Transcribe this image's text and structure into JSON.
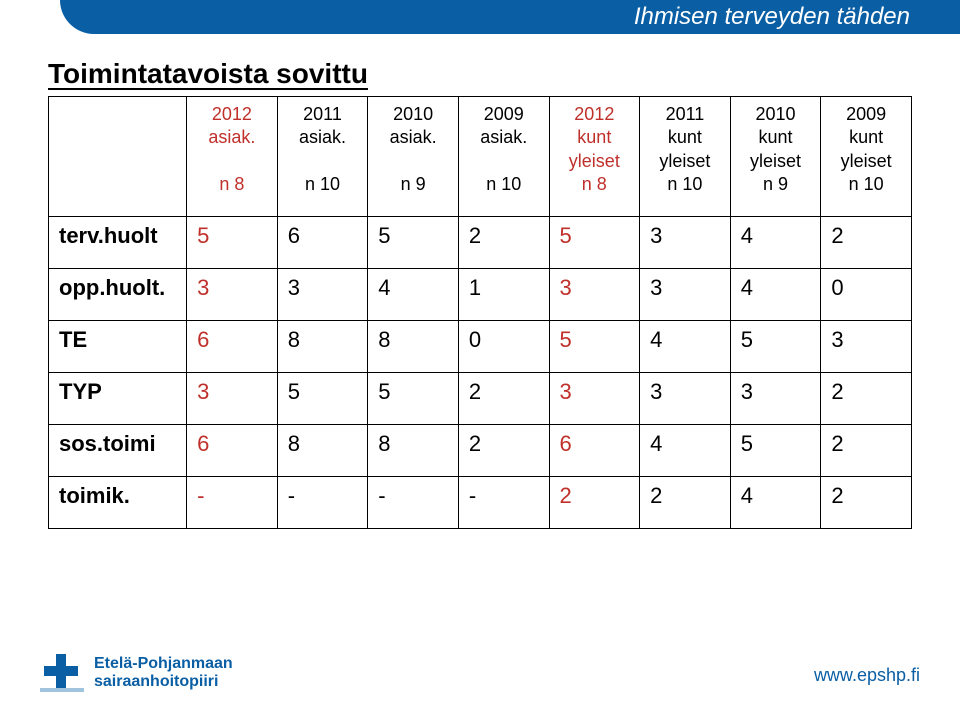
{
  "colors": {
    "accent": "#0a5fa4",
    "highlight_red": "#c0302b",
    "text": "#000000",
    "bg": "#ffffff"
  },
  "header": {
    "tagline": "Ihmisen terveyden tähden",
    "title": "Toimintatavoista  sovittu"
  },
  "table": {
    "row_label_width_pct": 16,
    "columns": [
      {
        "lines": [
          "2012",
          "asiak.",
          "",
          "n 8"
        ],
        "red": true
      },
      {
        "lines": [
          "2011",
          "asiak.",
          "",
          "n 10"
        ],
        "red": false
      },
      {
        "lines": [
          "2010",
          "asiak.",
          "",
          "n 9"
        ],
        "red": false
      },
      {
        "lines": [
          "2009",
          "asiak.",
          "",
          "n 10"
        ],
        "red": false
      },
      {
        "lines": [
          "2012",
          "kunt",
          "yleiset",
          "n 8"
        ],
        "red": true
      },
      {
        "lines": [
          "2011",
          "kunt",
          "yleiset",
          "n 10"
        ],
        "red": false
      },
      {
        "lines": [
          "2010",
          "kunt",
          "yleiset",
          "n 9"
        ],
        "red": false
      },
      {
        "lines": [
          "2009",
          "kunt",
          "yleiset",
          "n 10"
        ],
        "red": false
      }
    ],
    "rows": [
      {
        "label": "terv.huolt",
        "values": [
          "5",
          "6",
          "5",
          "2",
          "5",
          "3",
          "4",
          "2"
        ]
      },
      {
        "label": "opp.huolt.",
        "values": [
          "3",
          "3",
          "4",
          "1",
          "3",
          "3",
          "4",
          "0"
        ]
      },
      {
        "label": "TE",
        "values": [
          "6",
          "8",
          "8",
          "0",
          "5",
          "4",
          "5",
          "3"
        ]
      },
      {
        "label": "TYP",
        "values": [
          "3",
          "5",
          "5",
          "2",
          "3",
          "3",
          "3",
          "2"
        ]
      },
      {
        "label": "sos.toimi",
        "values": [
          "6",
          "8",
          "8",
          "2",
          "6",
          "4",
          "5",
          "2"
        ]
      },
      {
        "label": "toimik.",
        "values": [
          "-",
          "-",
          "-",
          "-",
          "2",
          "2",
          "4",
          "2"
        ]
      }
    ],
    "red_value_columns": [
      0,
      4
    ]
  },
  "footer": {
    "org_line1": "Etelä-Pohjanmaan",
    "org_line2": "sairaanhoitopiiri",
    "url": "www.epshp.fi"
  }
}
